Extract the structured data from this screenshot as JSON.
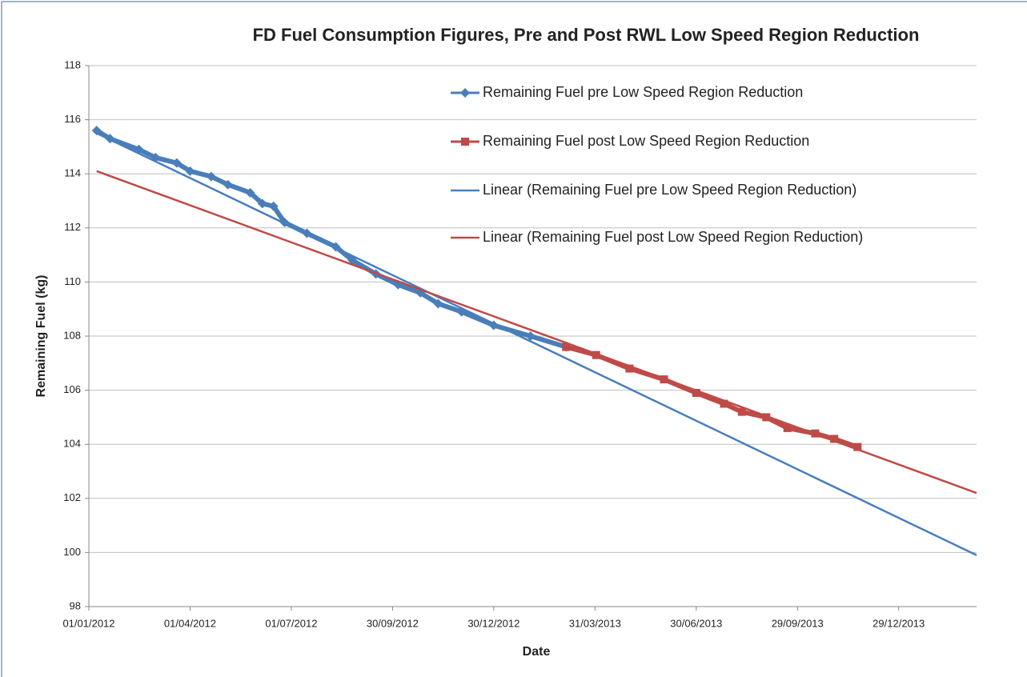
{
  "chart_data": {
    "type": "line",
    "title": "FD Fuel Consumption Figures, Pre and Post RWL Low Speed Region Reduction",
    "x_label": "Date",
    "y_label": "Remaining Fuel (kg)",
    "xlim": [
      "2012-01-01",
      "2014-03-09"
    ],
    "xticks": [
      {
        "value": "2012-01-01",
        "label": "01/01/2012"
      },
      {
        "value": "2012-04-01",
        "label": "01/04/2012"
      },
      {
        "value": "2012-07-01",
        "label": "01/07/2012"
      },
      {
        "value": "2012-09-30",
        "label": "30/09/2012"
      },
      {
        "value": "2012-12-30",
        "label": "30/12/2012"
      },
      {
        "value": "2013-03-31",
        "label": "31/03/2013"
      },
      {
        "value": "2013-06-30",
        "label": "30/06/2013"
      },
      {
        "value": "2013-09-29",
        "label": "29/09/2013"
      },
      {
        "value": "2013-12-29",
        "label": "29/12/2013"
      }
    ],
    "ylim": [
      98,
      118
    ],
    "yticks": [
      98,
      100,
      102,
      104,
      106,
      108,
      110,
      112,
      114,
      116,
      118
    ],
    "grid": true,
    "legend": "top-right",
    "series": [
      {
        "name": "Remaining Fuel pre Low Speed Region Reduction",
        "color": "#4a7ebb",
        "marker": "diamond",
        "x": [
          "2012-01-08",
          "2012-01-20",
          "2012-02-15",
          "2012-03-01",
          "2012-03-20",
          "2012-04-01",
          "2012-04-20",
          "2012-05-05",
          "2012-05-25",
          "2012-06-05",
          "2012-06-15",
          "2012-06-25",
          "2012-07-15",
          "2012-08-10",
          "2012-08-25",
          "2012-09-15",
          "2012-10-05",
          "2012-10-25",
          "2012-11-10",
          "2012-12-01",
          "2012-12-30",
          "2013-02-01",
          "2013-03-05"
        ],
        "values": [
          115.6,
          115.3,
          114.9,
          114.6,
          114.4,
          114.1,
          113.9,
          113.6,
          113.3,
          112.9,
          112.8,
          112.2,
          111.8,
          111.3,
          110.8,
          110.3,
          109.9,
          109.6,
          109.2,
          108.9,
          108.4,
          108.0,
          107.6
        ]
      },
      {
        "name": "Remaining Fuel post Low Speed Region Reduction",
        "color": "#be4b48",
        "marker": "square",
        "x": [
          "2013-03-05",
          "2013-04-01",
          "2013-05-01",
          "2013-06-01",
          "2013-06-30",
          "2013-07-25",
          "2013-08-10",
          "2013-09-01",
          "2013-09-20",
          "2013-10-15",
          "2013-11-01",
          "2013-11-22"
        ],
        "values": [
          107.6,
          107.3,
          106.8,
          106.4,
          105.9,
          105.5,
          105.2,
          105.0,
          104.6,
          104.4,
          104.2,
          103.9
        ]
      },
      {
        "name": "Linear (Remaining Fuel pre Low Speed Region Reduction)",
        "color": "#4a7ebb",
        "x": [
          "2012-01-08",
          "2014-03-09"
        ],
        "values": [
          115.5,
          99.9
        ]
      },
      {
        "name": "Linear (Remaining Fuel post Low Speed Region Reduction)",
        "color": "#be4b48",
        "x": [
          "2012-01-08",
          "2014-03-09"
        ],
        "values": [
          114.1,
          102.2
        ]
      }
    ]
  }
}
